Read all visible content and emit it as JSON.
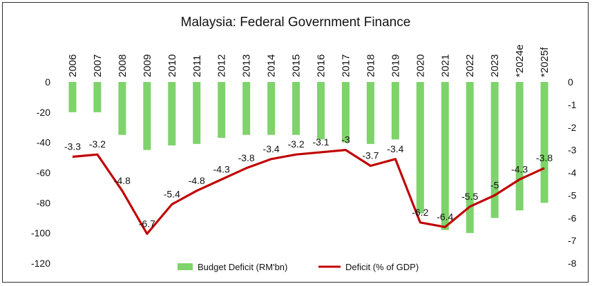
{
  "chart_data": {
    "type": "bar+line",
    "title": "Malaysia: Federal Government Finance",
    "categories": [
      "2006",
      "2007",
      "2008",
      "2009",
      "2010",
      "2011",
      "2012",
      "2013",
      "2014",
      "2015",
      "2016",
      "2017",
      "2018",
      "2019",
      "2020",
      "2021",
      "2022",
      "2023",
      "*2024e",
      "*2025f"
    ],
    "series": [
      {
        "name": "Budget Deficit (RM'bn)",
        "type": "bar",
        "axis": "left",
        "color": "#7ED36B",
        "values": [
          -20,
          -20,
          -35,
          -45,
          -42,
          -41,
          -37,
          -35,
          -35,
          -35,
          -38,
          -40,
          -41,
          -38,
          -87,
          -98,
          -100,
          -90,
          -85,
          -80
        ]
      },
      {
        "name": "Deficit (% of GDP)",
        "type": "line",
        "axis": "right",
        "color": "#C00000",
        "values": [
          -3.3,
          -3.2,
          -4.8,
          -6.7,
          -5.4,
          -4.8,
          -4.3,
          -3.8,
          -3.4,
          -3.2,
          -3.1,
          -3,
          -3.7,
          -3.4,
          -6.2,
          -6.4,
          -5.5,
          -5,
          -4.3,
          -3.8
        ]
      }
    ],
    "y_left": {
      "range": [
        -120,
        0
      ],
      "ticks": [
        "0",
        "-20",
        "-40",
        "-60",
        "-80",
        "-100",
        "-120"
      ]
    },
    "y_right": {
      "range": [
        -8,
        0
      ],
      "ticks": [
        "0",
        "-1",
        "-2",
        "-3",
        "-4",
        "-5",
        "-6",
        "-7",
        "-8"
      ]
    },
    "legend": "bottom-center",
    "grid": false
  }
}
